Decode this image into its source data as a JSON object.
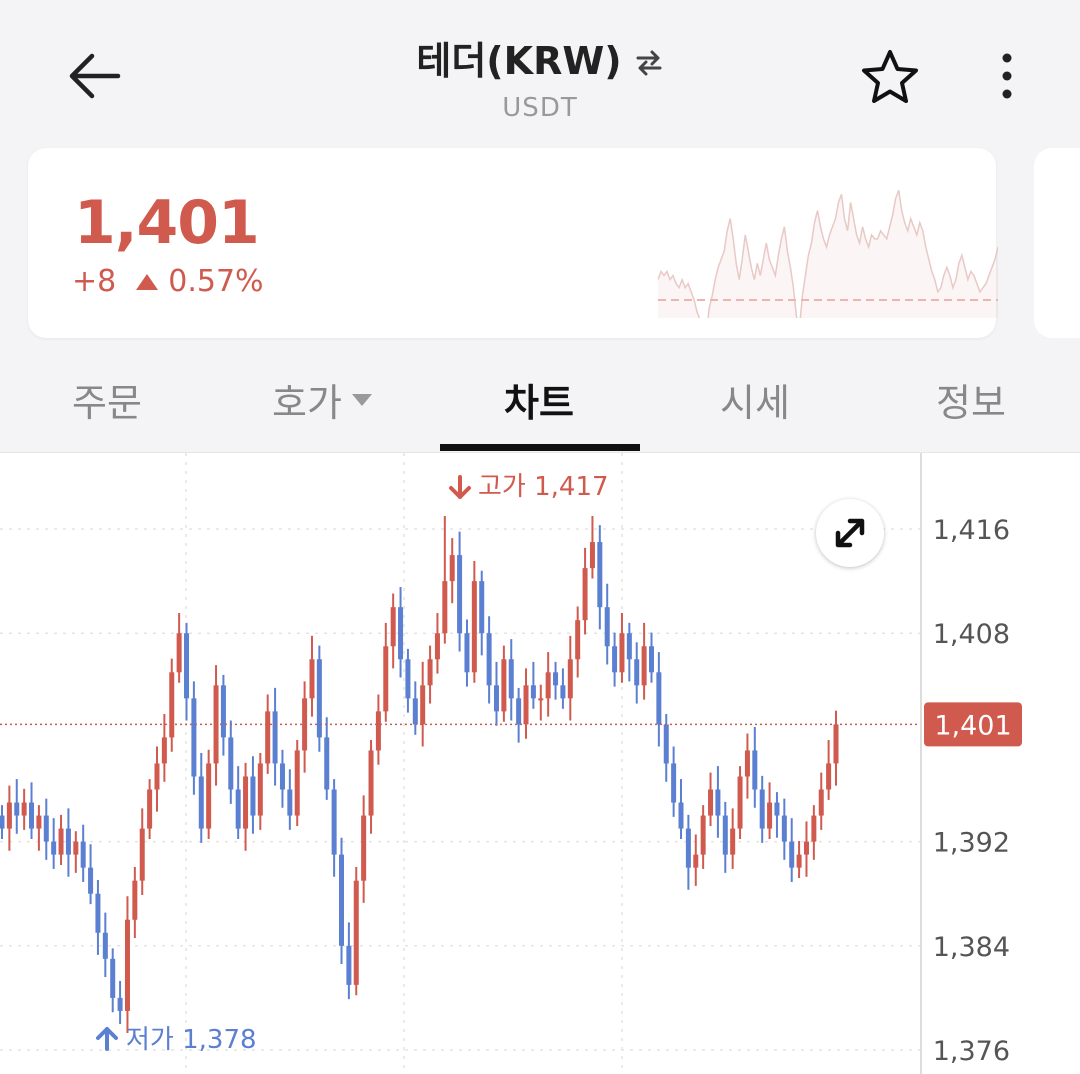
{
  "header": {
    "title": "테더(KRW)",
    "subtitle": "USDT",
    "icons": {
      "back": "arrow-left-icon",
      "swap": "swap-icon",
      "favorite": "star-icon",
      "more": "more-vertical-icon"
    }
  },
  "price": {
    "current": "1,401",
    "change": "+8",
    "change_pct": "0.57%",
    "color": "#d05a4e"
  },
  "tabs": [
    {
      "label": "주문"
    },
    {
      "label": "호가"
    },
    {
      "label": "차트"
    },
    {
      "label": "시세"
    },
    {
      "label": "정보"
    }
  ],
  "chart_data": {
    "type": "candlestick",
    "y_ticks": [
      "1,416",
      "1,408",
      "1,392",
      "1,384",
      "1,376"
    ],
    "current_label": "1,401",
    "high_label": "고가 1,417",
    "low_label": "저가 1,378",
    "colors": {
      "up": "#d05a4e",
      "down": "#5b7fd1"
    },
    "ylim": [
      1375,
      1418
    ],
    "current": 1401,
    "high": 1417,
    "low": 1378,
    "closes": [
      1393,
      1395,
      1394,
      1395,
      1393,
      1394,
      1392,
      1391,
      1393,
      1391,
      1392,
      1390,
      1388,
      1385,
      1383,
      1380,
      1379,
      1386,
      1389,
      1393,
      1396,
      1398,
      1400,
      1405,
      1408,
      1403,
      1397,
      1393,
      1398,
      1404,
      1400,
      1396,
      1393,
      1397,
      1394,
      1398,
      1402,
      1398,
      1396,
      1394,
      1399,
      1403,
      1406,
      1400,
      1396,
      1391,
      1384,
      1381,
      1389,
      1394,
      1399,
      1402,
      1407,
      1410,
      1406,
      1403,
      1401,
      1404,
      1406,
      1408,
      1412,
      1414,
      1408,
      1405,
      1412,
      1408,
      1404,
      1402,
      1406,
      1403,
      1401,
      1404,
      1403,
      1403,
      1405,
      1404,
      1403,
      1406,
      1409,
      1413,
      1415,
      1410,
      1407,
      1405,
      1408,
      1406,
      1404,
      1407,
      1405,
      1401,
      1398,
      1395,
      1393,
      1390,
      1391,
      1394,
      1396,
      1394,
      1391,
      1393,
      1397,
      1399,
      1396,
      1393,
      1395,
      1394,
      1392,
      1390,
      1391,
      1392,
      1394,
      1396,
      1398,
      1401
    ]
  }
}
